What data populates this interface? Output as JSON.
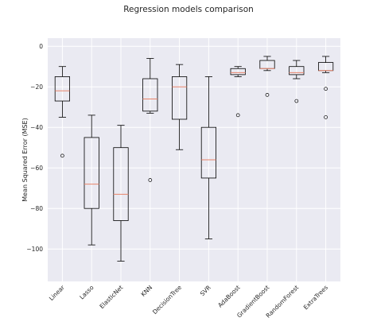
{
  "chart_data": {
    "type": "boxplot",
    "title": "Regression models comparison",
    "xlabel": "",
    "ylabel": "Mean Squared Error (MSE)",
    "ylim": [
      -116,
      4
    ],
    "yticks": [
      0,
      -20,
      -40,
      -60,
      -80,
      -100
    ],
    "grid": true,
    "background": "#EAEAF2",
    "median_color": "#E8846A",
    "categories": [
      "Linear",
      "Lasso",
      "ElasticNet",
      "KNN",
      "DecisionTree",
      "SVR",
      "AdaBoost",
      "GradientBoost",
      "RandomForest",
      "ExtraTrees"
    ],
    "boxes": [
      {
        "name": "Linear",
        "whisker_low": -35,
        "q1": -27,
        "median": -22,
        "q3": -15,
        "whisker_high": -10,
        "outliers": [
          -54
        ]
      },
      {
        "name": "Lasso",
        "whisker_low": -98,
        "q1": -80,
        "median": -68,
        "q3": -45,
        "whisker_high": -34,
        "outliers": []
      },
      {
        "name": "ElasticNet",
        "whisker_low": -106,
        "q1": -86,
        "median": -73,
        "q3": -50,
        "whisker_high": -39,
        "outliers": []
      },
      {
        "name": "KNN",
        "whisker_low": -33,
        "q1": -32,
        "median": -26,
        "q3": -16,
        "whisker_high": -6,
        "outliers": [
          -66
        ]
      },
      {
        "name": "DecisionTree",
        "whisker_low": -51,
        "q1": -36,
        "median": -20,
        "q3": -15,
        "whisker_high": -9,
        "outliers": []
      },
      {
        "name": "SVR",
        "whisker_low": -95,
        "q1": -65,
        "median": -56,
        "q3": -40,
        "whisker_high": -15,
        "outliers": []
      },
      {
        "name": "AdaBoost",
        "whisker_low": -15,
        "q1": -14,
        "median": -13,
        "q3": -11,
        "whisker_high": -10,
        "outliers": [
          -34
        ]
      },
      {
        "name": "GradientBoost",
        "whisker_low": -12,
        "q1": -11,
        "median": -11,
        "q3": -7,
        "whisker_high": -5,
        "outliers": [
          -24
        ]
      },
      {
        "name": "RandomForest",
        "whisker_low": -16,
        "q1": -14,
        "median": -13,
        "q3": -10,
        "whisker_high": -7,
        "outliers": [
          -27
        ]
      },
      {
        "name": "ExtraTrees",
        "whisker_low": -13,
        "q1": -12,
        "median": -12,
        "q3": -8,
        "whisker_high": -5,
        "outliers": [
          -21,
          -35
        ]
      }
    ]
  }
}
